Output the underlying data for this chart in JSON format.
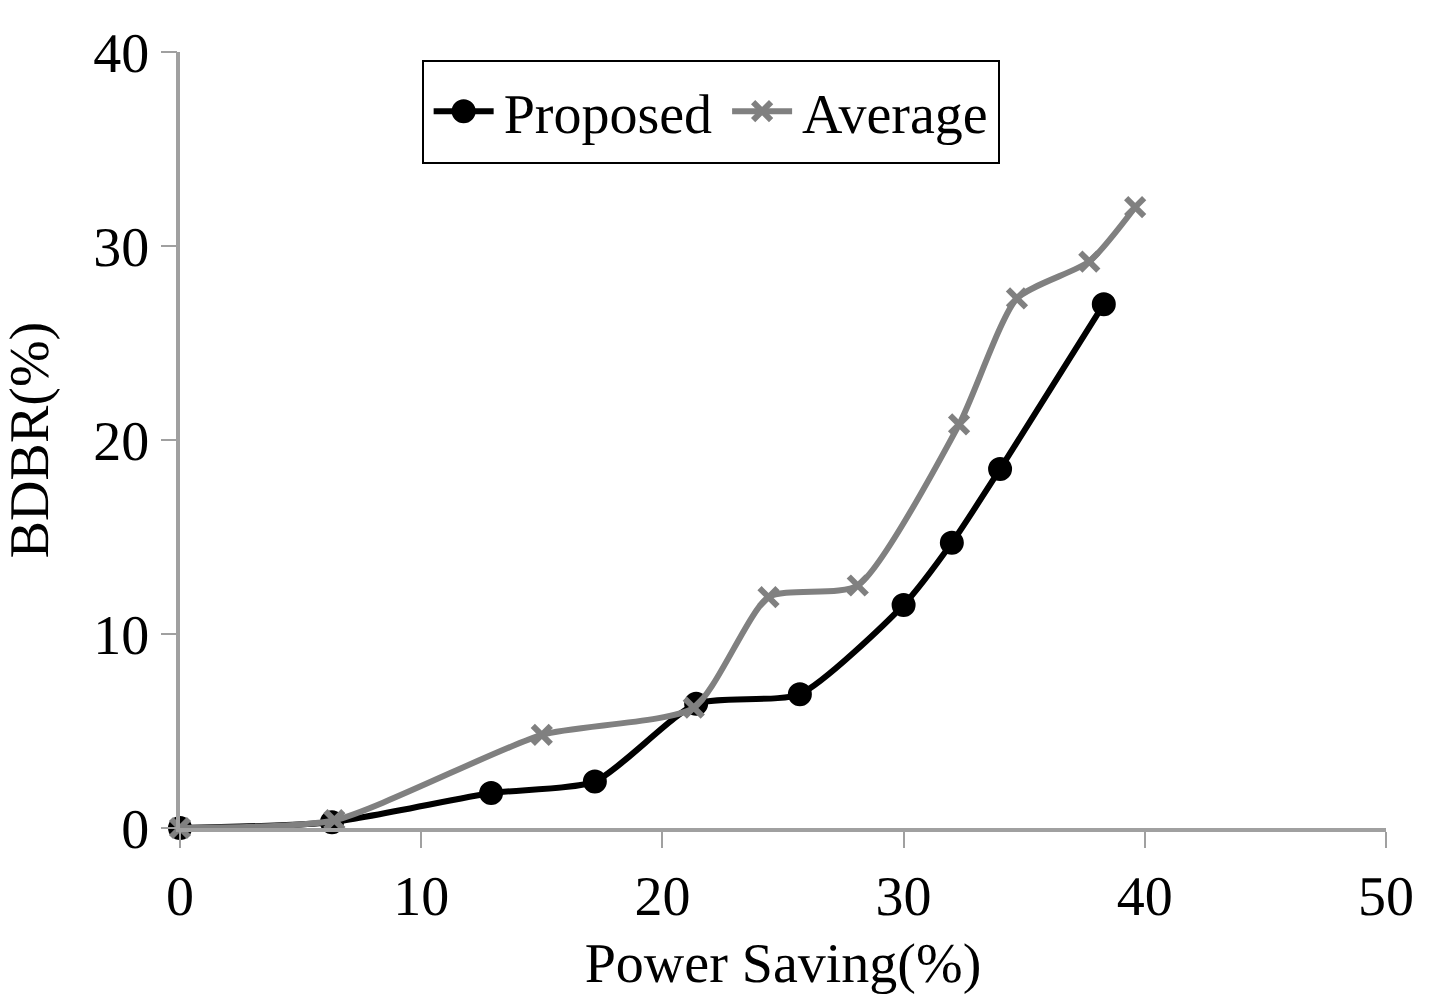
{
  "chart_data": {
    "type": "line",
    "xlabel": "Power Saving(%)",
    "ylabel": "BDBR(%)",
    "series": [
      {
        "name": "Proposed",
        "color": "#000000",
        "marker": "circle",
        "x": [
          0,
          6.3,
          12.9,
          17.2,
          21.4,
          25.7,
          30,
          32,
          34,
          38.3
        ],
        "values": [
          0,
          0.3,
          1.8,
          2.4,
          6.4,
          6.9,
          11.5,
          14.7,
          18.5,
          27
        ]
      },
      {
        "name": "Average",
        "color": "#808080",
        "marker": "cross",
        "x": [
          0,
          6.4,
          15,
          21.3,
          24.4,
          28.1,
          32.3,
          34.7,
          37.7,
          39.6
        ],
        "values": [
          0,
          0.4,
          4.8,
          6.2,
          11.9,
          12.5,
          20.8,
          27.3,
          29.2,
          32
        ]
      }
    ],
    "xlim": [
      0,
      50
    ],
    "xticks": [
      0,
      10,
      20,
      30,
      40,
      50
    ],
    "ylim": [
      0,
      40
    ],
    "yticks": [
      0,
      10,
      20,
      30,
      40
    ],
    "legend": "top",
    "line_style": "solid"
  }
}
